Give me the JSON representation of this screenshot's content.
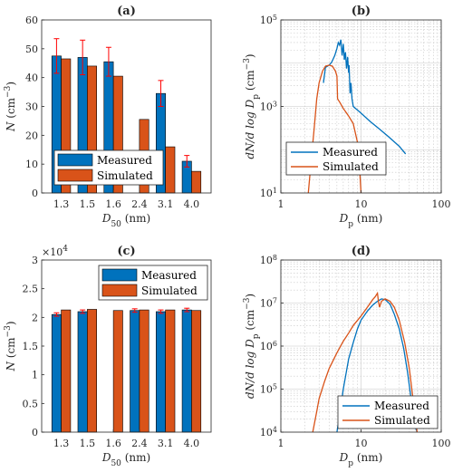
{
  "colors": {
    "measured": "#0072BD",
    "simulated": "#D95319",
    "error": "#FF0000",
    "grid": "#c8c8c8"
  },
  "chart_data": [
    {
      "id": "a",
      "type": "bar",
      "title": "(a)",
      "categories": [
        "1.3",
        "1.5",
        "1.6",
        "2.4",
        "3.1",
        "4.0"
      ],
      "series": [
        {
          "name": "Measured",
          "values": [
            47.5,
            47.0,
            45.5,
            null,
            34.5,
            11.0
          ],
          "error": [
            6,
            6,
            5,
            null,
            4.5,
            2
          ]
        },
        {
          "name": "Simulated",
          "values": [
            46.5,
            44.0,
            40.5,
            25.5,
            16.0,
            7.5
          ]
        }
      ],
      "ylim": [
        0,
        60
      ],
      "yticks": [
        0,
        10,
        20,
        30,
        40,
        50,
        60
      ],
      "ylabel_main": "N",
      "ylabel_unit": " (cm",
      "ylabel_exp": "−3",
      "ylabel_end": ")",
      "xlabel_main": "D",
      "xlabel_sub": "50",
      "xlabel_unit": " (nm)",
      "legend": "lower-left",
      "grid": false
    },
    {
      "id": "b",
      "type": "line",
      "title": "(b)",
      "xscale": "log",
      "yscale": "log",
      "xlim": [
        1,
        100
      ],
      "ylim": [
        10,
        100000
      ],
      "xticks": [
        "1",
        "10",
        "100"
      ],
      "ytick_exps": [
        "1",
        "3",
        "5"
      ],
      "series": [
        {
          "name": "Measured",
          "x": [
            3.4,
            3.6,
            4.0,
            4.3,
            4.7,
            5.0,
            5.2,
            5.4,
            5.6,
            5.8,
            6.0,
            6.2,
            6.4,
            6.6,
            6.8,
            7.0,
            7.1,
            7.3,
            7.5,
            7.7,
            8,
            10,
            13,
            17,
            22,
            30,
            36
          ],
          "y": [
            3500,
            8000,
            9000,
            10500,
            15000,
            22000,
            30000,
            26000,
            35000,
            15000,
            28000,
            12000,
            18000,
            7500,
            14000,
            6000,
            9000,
            2000,
            3500,
            1500,
            1000,
            700,
            450,
            300,
            200,
            120,
            80
          ]
        },
        {
          "name": "Simulated",
          "x": [
            2.2,
            2.4,
            2.6,
            2.8,
            3.0,
            3.3,
            3.6,
            4.0,
            4.4,
            4.8,
            5.0,
            5.1,
            5.5,
            6,
            7,
            8,
            9,
            9.5,
            10
          ],
          "y": [
            10,
            60,
            300,
            1500,
            3500,
            6500,
            8500,
            9000,
            8500,
            6500,
            5000,
            1500,
            1200,
            900,
            600,
            400,
            150,
            50,
            10
          ]
        }
      ],
      "ylabel": "dN/d log D",
      "ylabel_sub": "p",
      "ylabel_unit": " (cm",
      "ylabel_exp": "−3",
      "ylabel_end": ")",
      "xlabel_main": "D",
      "xlabel_sub": "p",
      "xlabel_unit": " (nm)",
      "legend": "lower-left",
      "grid": true
    },
    {
      "id": "c",
      "type": "bar",
      "title": "(c)",
      "categories": [
        "1.3",
        "1.5",
        "1.6",
        "2.4",
        "3.1",
        "4.0"
      ],
      "series": [
        {
          "name": "Measured",
          "values": [
            20500,
            21000,
            null,
            21200,
            21000,
            21300
          ],
          "error": [
            300,
            300,
            null,
            300,
            300,
            300
          ]
        },
        {
          "name": "Simulated",
          "values": [
            21300,
            21400,
            21200,
            21300,
            21300,
            21200
          ]
        }
      ],
      "ylim": [
        0,
        30000
      ],
      "yticks": [
        0,
        5000,
        10000,
        15000,
        20000,
        25000,
        30000
      ],
      "ytick_labels": [
        "0",
        "0.5",
        "1",
        "1.5",
        "2",
        "2.5",
        "3"
      ],
      "yscale_label": "×10",
      "yscale_exp": "4",
      "ylabel_main": "N",
      "ylabel_unit": " (cm",
      "ylabel_exp": "−3",
      "ylabel_end": ")",
      "xlabel_main": "D",
      "xlabel_sub": "50",
      "xlabel_unit": " (nm)",
      "legend": "top-right",
      "grid": false
    },
    {
      "id": "d",
      "type": "line",
      "title": "(d)",
      "xscale": "log",
      "yscale": "log",
      "xlim": [
        1,
        100
      ],
      "ylim": [
        10000,
        100000000
      ],
      "xticks": [
        "1",
        "10",
        "100"
      ],
      "ytick_exps": [
        "4",
        "5",
        "6",
        "7",
        "8"
      ],
      "series": [
        {
          "name": "Measured",
          "x": [
            5.0,
            5.5,
            6,
            7,
            8,
            9,
            10,
            12,
            14,
            16,
            18,
            20,
            23,
            26,
            30,
            34,
            38,
            42,
            46,
            50
          ],
          "y": [
            10000,
            30000,
            100000,
            500000,
            1200000,
            2500000,
            4000000,
            6500000,
            9000000,
            11000000,
            12500000,
            12000000,
            9500000,
            5500000,
            2500000,
            900000,
            250000,
            60000,
            15000,
            10000
          ]
        },
        {
          "name": "Simulated",
          "x": [
            2.5,
            2.8,
            3,
            3.5,
            4,
            5,
            6,
            7,
            8,
            10,
            12,
            14,
            15,
            16,
            16.5,
            17,
            18,
            20,
            23,
            26,
            30,
            35,
            40,
            45,
            50
          ],
          "y": [
            10000,
            30000,
            60000,
            150000,
            300000,
            700000,
            1300000,
            2000000,
            3000000,
            5000000,
            8000000,
            12000000,
            14000000,
            17000000,
            11000000,
            8000000,
            11000000,
            12500000,
            11000000,
            8000000,
            4000000,
            1200000,
            300000,
            50000,
            10000
          ]
        }
      ],
      "ylabel": "dN/d log D",
      "ylabel_sub": "p",
      "ylabel_unit": " (cm",
      "ylabel_exp": "−3",
      "ylabel_end": ")",
      "xlabel_main": "D",
      "xlabel_sub": "p",
      "xlabel_unit": " (nm)",
      "legend": "lower-right",
      "grid": true
    }
  ]
}
